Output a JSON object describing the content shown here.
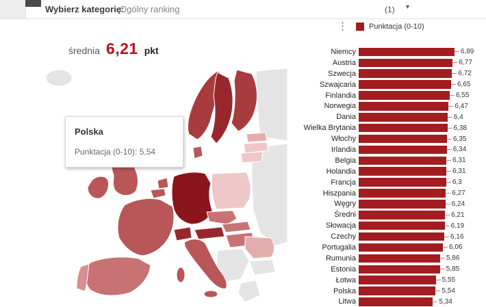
{
  "header": {
    "label": "Wybierz kategorię:",
    "value": "Ogólny ranking",
    "count": "(1)",
    "caret": "▾"
  },
  "icons": {
    "kebab": "⋮"
  },
  "average": {
    "prefix": "średnia",
    "value": "6,21",
    "suffix": "pkt"
  },
  "map": {
    "tooltip": {
      "title": "Polska",
      "text": "Punktacja (0-10): 5,54"
    },
    "no_data_color": "#e4e4e4",
    "scale": [
      "#eec7c7",
      "#e4adad",
      "#d78f90",
      "#c87273",
      "#b85658",
      "#a83b3e",
      "#98272b",
      "#8a151b"
    ]
  },
  "chart_data": {
    "type": "bar",
    "orientation": "horizontal",
    "legend": "Punktacja (0-10)",
    "bar_color": "#A31C20",
    "xlim": [
      0,
      7
    ],
    "categories": [
      "Niemcy",
      "Austria",
      "Szwecja",
      "Szwajcaria",
      "Finlandia",
      "Norwegia",
      "Dania",
      "Wielka Brytania",
      "Włochy",
      "Irlandia",
      "Belgia",
      "Holandia",
      "Francja",
      "Hiszpania",
      "Węgry",
      "Średni",
      "Słowacja",
      "Czechy",
      "Portugalia",
      "Rumunia",
      "Estonia",
      "Łotwa",
      "Polska",
      "Litwa"
    ],
    "values": [
      6.89,
      6.77,
      6.72,
      6.65,
      6.55,
      6.47,
      6.4,
      6.38,
      6.35,
      6.34,
      6.31,
      6.31,
      6.3,
      6.27,
      6.24,
      6.21,
      6.19,
      6.16,
      6.06,
      5.86,
      5.85,
      5.55,
      5.54,
      5.34
    ],
    "value_labels": [
      "6,89",
      "6,77",
      "6,72",
      "6,65",
      "6,55",
      "6,47",
      "6,4",
      "6,38",
      "6,35",
      "6,34",
      "6,31",
      "6,31",
      "6,3",
      "6,27",
      "6,24",
      "6,21",
      "6,19",
      "6,16",
      "6,06",
      "5,86",
      "5,85",
      "5,55",
      "5,54",
      "5,34"
    ]
  }
}
